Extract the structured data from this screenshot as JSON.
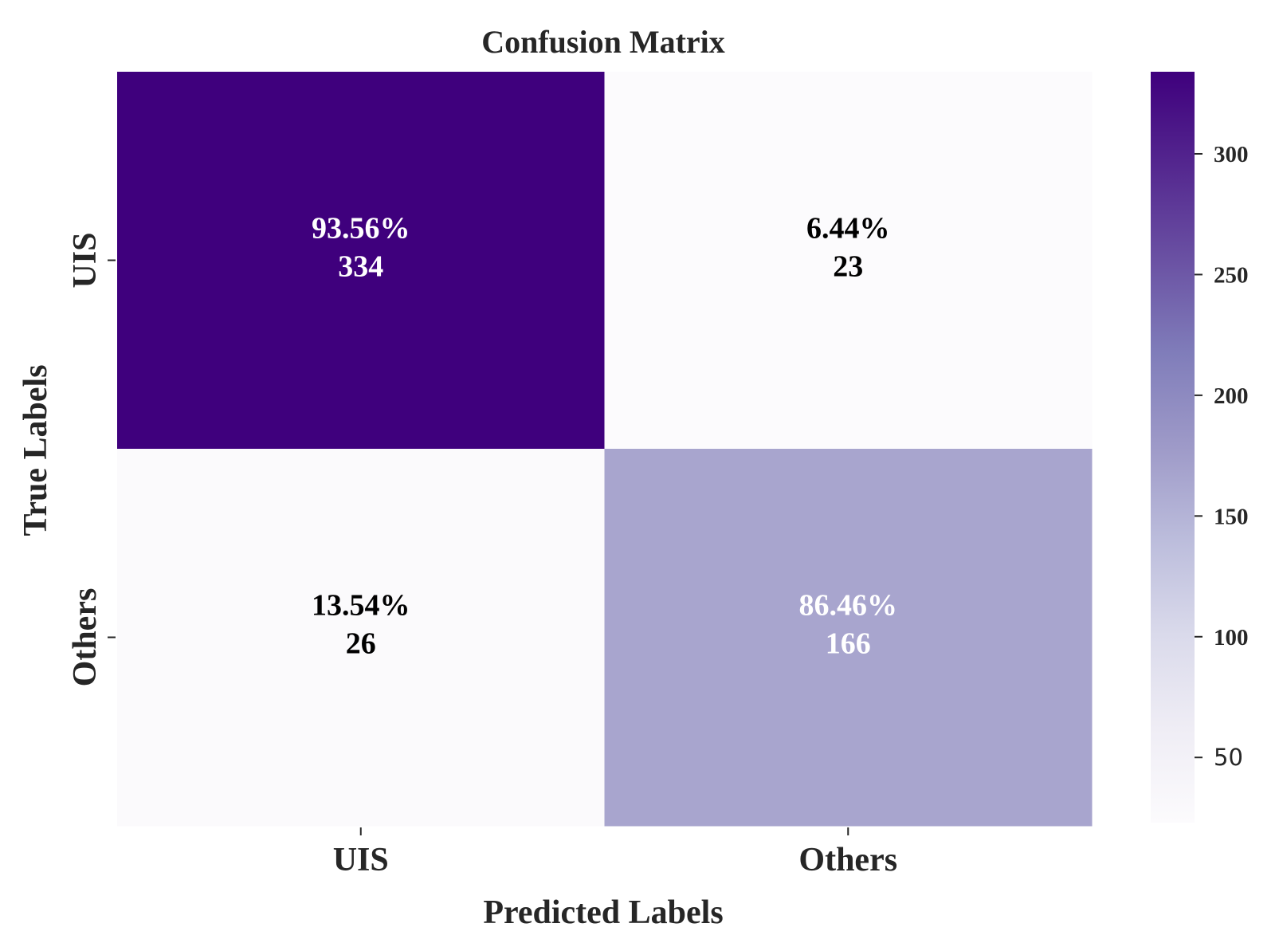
{
  "chart_data": {
    "type": "heatmap",
    "title": "Confusion Matrix",
    "xlabel": "Predicted Labels",
    "ylabel": "True Labels",
    "x_categories": [
      "UIS",
      "Others"
    ],
    "y_categories": [
      "UIS",
      "Others"
    ],
    "cells": [
      [
        {
          "percent_label": "93.56%",
          "count_label": "334",
          "count": 334
        },
        {
          "percent_label": "6.44%",
          "count_label": "23",
          "count": 23
        }
      ],
      [
        {
          "percent_label": "13.54%",
          "count_label": "26",
          "count": 26
        },
        {
          "percent_label": "86.46%",
          "count_label": "166",
          "count": 166
        }
      ]
    ],
    "colorbar": {
      "min": 23,
      "max": 334,
      "ticks": [
        50,
        100,
        150,
        200,
        250,
        300
      ],
      "tick_labels": [
        "50",
        "100",
        "150",
        "200",
        "250",
        "300"
      ],
      "colormap": "Purples",
      "low_color": "#fcfbfd",
      "high_color": "#3f007d"
    }
  }
}
